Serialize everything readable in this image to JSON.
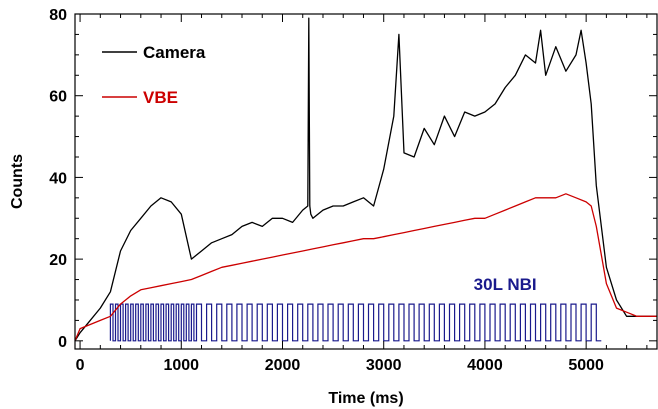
{
  "chart_data": {
    "type": "line",
    "title": "",
    "xlabel": "Time (ms)",
    "ylabel": "Counts",
    "xlim": [
      -50,
      5700
    ],
    "ylim": [
      -2,
      80
    ],
    "xticks": [
      0,
      1000,
      2000,
      3000,
      4000,
      5000
    ],
    "yticks": [
      0,
      20,
      40,
      60,
      80
    ],
    "grid": false,
    "legend_position": "top-left",
    "colors": {
      "camera": "#000000",
      "vbe": "#cc0000",
      "nbi": "#1a1a8c"
    },
    "series": [
      {
        "name": "Camera",
        "x": [
          -50,
          0,
          100,
          200,
          300,
          400,
          500,
          600,
          700,
          800,
          900,
          1000,
          1100,
          1200,
          1300,
          1400,
          1500,
          1600,
          1700,
          1800,
          1900,
          2000,
          2100,
          2200,
          2250,
          2260,
          2270,
          2280,
          2300,
          2400,
          2500,
          2600,
          2700,
          2800,
          2900,
          3000,
          3100,
          3150,
          3200,
          3300,
          3400,
          3500,
          3600,
          3700,
          3800,
          3900,
          4000,
          4100,
          4200,
          4300,
          4400,
          4500,
          4550,
          4600,
          4700,
          4800,
          4900,
          4950,
          5000,
          5050,
          5100,
          5200,
          5300,
          5400,
          5500,
          5600,
          5700
        ],
        "y": [
          0,
          2,
          5,
          8,
          12,
          22,
          27,
          30,
          33,
          35,
          34,
          31,
          20,
          22,
          24,
          25,
          26,
          28,
          29,
          28,
          30,
          30,
          29,
          32,
          33,
          79,
          33,
          31,
          30,
          32,
          33,
          33,
          34,
          35,
          33,
          42,
          55,
          75,
          46,
          45,
          52,
          48,
          55,
          50,
          56,
          55,
          56,
          58,
          62,
          65,
          70,
          68,
          76,
          65,
          72,
          66,
          70,
          76,
          68,
          58,
          38,
          18,
          10,
          6,
          6,
          6,
          6
        ]
      },
      {
        "name": "VBE",
        "x": [
          -50,
          0,
          100,
          200,
          300,
          400,
          500,
          600,
          700,
          800,
          900,
          1000,
          1100,
          1200,
          1300,
          1400,
          1500,
          1600,
          1700,
          1800,
          1900,
          2000,
          2100,
          2200,
          2300,
          2400,
          2500,
          2600,
          2700,
          2800,
          2900,
          3000,
          3100,
          3200,
          3300,
          3400,
          3500,
          3600,
          3700,
          3800,
          3900,
          4000,
          4100,
          4200,
          4300,
          4400,
          4500,
          4600,
          4700,
          4800,
          4900,
          5000,
          5050,
          5100,
          5200,
          5300,
          5400,
          5500,
          5600,
          5700
        ],
        "y": [
          0,
          3,
          4,
          5,
          6,
          9,
          11,
          12.5,
          13,
          13.5,
          14,
          14.5,
          15,
          16,
          17,
          18,
          18.5,
          19,
          19.5,
          20,
          20.5,
          21,
          21.5,
          22,
          22.5,
          23,
          23.5,
          24,
          24.5,
          25,
          25,
          25.5,
          26,
          26.5,
          27,
          27.5,
          28,
          28.5,
          29,
          29.5,
          30,
          30,
          31,
          32,
          33,
          34,
          35,
          35,
          35,
          36,
          35,
          34,
          33,
          28,
          14,
          8,
          7,
          6,
          6,
          6
        ]
      }
    ],
    "annotations": [
      {
        "text": "30L NBI",
        "color": "#1a1a8c",
        "pulse_train": {
          "dense_start": 300,
          "dense_end": 1150,
          "dense_period": 50,
          "sparse_start": 1150,
          "sparse_end": 5100,
          "sparse_period": 100,
          "low": 0,
          "high": 9
        }
      }
    ]
  }
}
